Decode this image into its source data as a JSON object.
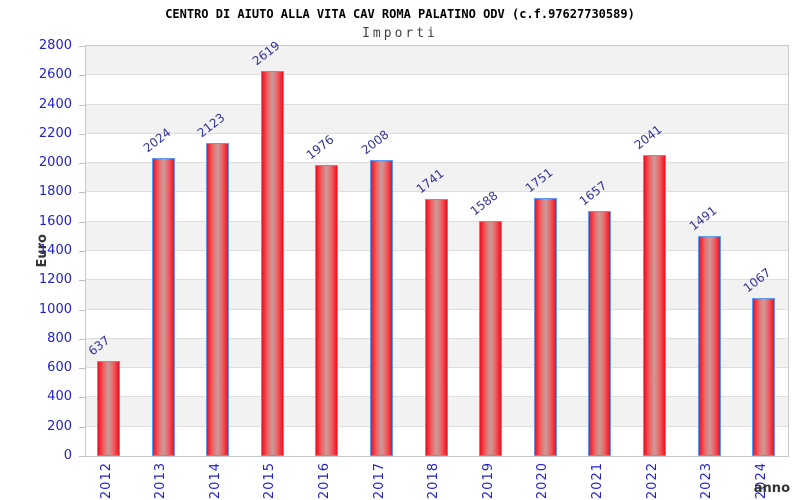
{
  "title": "CENTRO DI AIUTO ALLA VITA CAV ROMA PALATINO ODV (c.f.97627730589)",
  "subtitle": "Importi",
  "chart_data": {
    "type": "bar",
    "title": "CENTRO DI AIUTO ALLA VITA CAV ROMA PALATINO ODV (c.f.97627730589)",
    "subtitle": "Importi",
    "xlabel": "anno",
    "ylabel": "Euro",
    "categories": [
      "2012",
      "2013",
      "2014",
      "2015",
      "2016",
      "2017",
      "2018",
      "2019",
      "2020",
      "2021",
      "2022",
      "2023",
      "2024"
    ],
    "values": [
      637,
      2024,
      2123,
      2619,
      1976,
      2008,
      1741,
      1588,
      1751,
      1657,
      2041,
      1491,
      1067
    ],
    "ylim": [
      0,
      2800
    ],
    "ytick_step": 200,
    "grid": "horizontal-on",
    "legend": "none",
    "bands_alternating": true,
    "colors": {
      "bar_edge": "#ee1021",
      "bar_center": "#c79c9c",
      "bar_border": "#5c9cf5",
      "tick_label": "#2222cc",
      "value_label": "#333399",
      "band_gray": "#f2f2f2",
      "band_white": "#ffffff",
      "gridline": "#dedede",
      "plot_border": "#c8c8c8",
      "axis_title": "#333333",
      "title_color": "#000000",
      "subtitle_color": "#444444"
    }
  }
}
